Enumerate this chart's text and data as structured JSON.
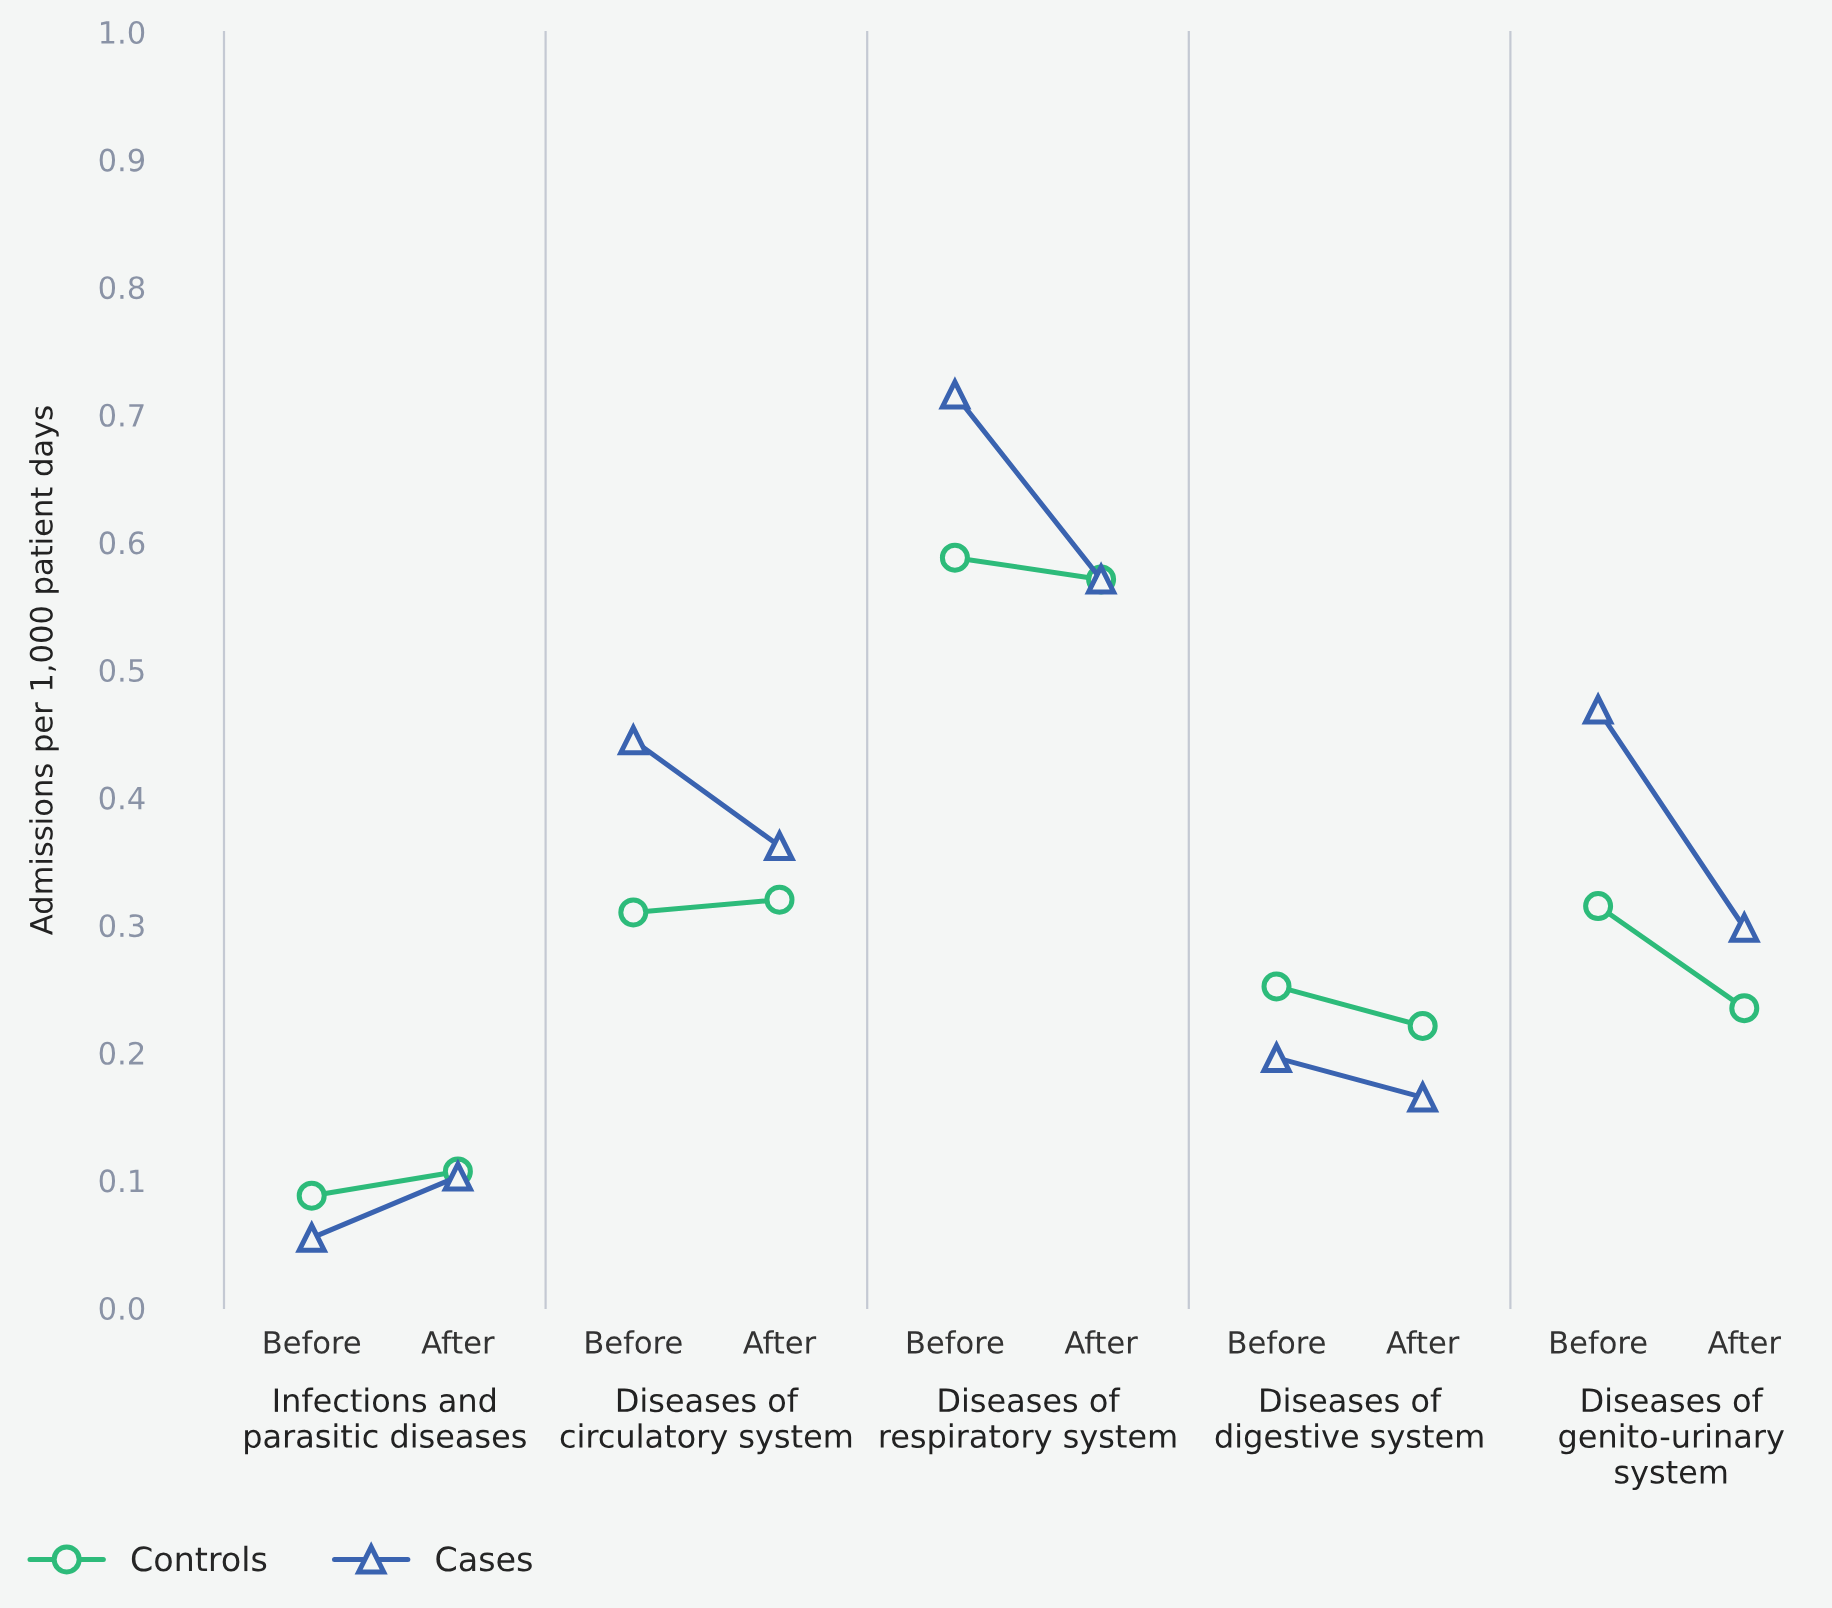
{
  "chart_data": [
    {
      "type": "line",
      "xlabel": "Infections and\nparasitic diseases",
      "ylabel": "Admissions per 1,000 patient days",
      "categories": [
        "Before",
        "After"
      ],
      "ylim": [
        0,
        1
      ],
      "yticks": [
        {
          "value": 0,
          "label": "0.0"
        },
        {
          "value": 0.1,
          "label": "0.1"
        },
        {
          "value": 0.2,
          "label": "0.2"
        },
        {
          "value": 0.3,
          "label": "0.3"
        },
        {
          "value": 0.4,
          "label": "0.4"
        },
        {
          "value": 0.5,
          "label": "0.5"
        },
        {
          "value": 0.6,
          "label": "0.6"
        },
        {
          "value": 0.7,
          "label": "0.7"
        },
        {
          "value": 0.8,
          "label": "0.8"
        },
        {
          "value": 0.9,
          "label": "0.9"
        },
        {
          "value": 1,
          "label": "1.0"
        }
      ],
      "legend": "bottom",
      "series": [
        {
          "name": "Controls",
          "color": "#2dbb7a",
          "marker": "circle",
          "values": [
            0.088,
            0.107
          ]
        },
        {
          "name": "Cases",
          "color": "#3a63b0",
          "marker": "triangle",
          "values": [
            0.055,
            0.103
          ]
        }
      ]
    },
    {
      "type": "line",
      "xlabel": "Diseases of\ncirculatory system",
      "categories": [
        "Before",
        "After"
      ],
      "ylim": [
        0,
        1
      ],
      "tick_labels": "x",
      "series": [
        {
          "color": "#2dbb7a",
          "marker": "circle",
          "values": [
            0.31,
            0.32
          ]
        },
        {
          "color": "#3a63b0",
          "marker": "triangle",
          "values": [
            0.445,
            0.362
          ]
        }
      ]
    },
    {
      "type": "line",
      "xlabel": "Diseases of\nrespiratory system",
      "categories": [
        "Before",
        "After"
      ],
      "ylim": [
        0,
        1
      ],
      "tick_labels": "x",
      "series": [
        {
          "color": "#2dbb7a",
          "marker": "circle",
          "values": [
            0.588,
            0.571
          ]
        },
        {
          "color": "#3a63b0",
          "marker": "triangle",
          "values": [
            0.716,
            0.571
          ]
        }
      ]
    },
    {
      "type": "line",
      "xlabel": "Diseases of\ndigestive system",
      "categories": [
        "Before",
        "After"
      ],
      "ylim": [
        0,
        1
      ],
      "tick_labels": "x",
      "series": [
        {
          "color": "#2dbb7a",
          "marker": "circle",
          "values": [
            0.252,
            0.221
          ]
        },
        {
          "color": "#3a63b0",
          "marker": "triangle",
          "values": [
            0.196,
            0.165
          ]
        }
      ]
    },
    {
      "type": "line",
      "xlabel": "Diseases of\ngenito-urinary\nsystem",
      "categories": [
        "Before",
        "After"
      ],
      "ylim": [
        0,
        1
      ],
      "tick_labels": "x",
      "series": [
        {
          "color": "#2dbb7a",
          "marker": "circle",
          "values": [
            0.315,
            0.235
          ]
        },
        {
          "color": "#3a63b0",
          "marker": "triangle",
          "values": [
            0.469,
            0.298
          ]
        }
      ]
    }
  ]
}
